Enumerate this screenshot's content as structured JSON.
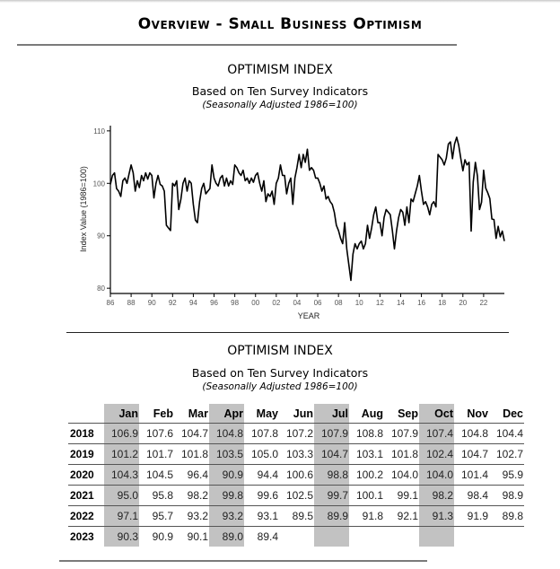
{
  "page": {
    "title": "Overview - Small Business Optimism"
  },
  "chart_section": {
    "title": "OPTIMISM INDEX",
    "subtitle": "Based on Ten Survey Indicators",
    "note": "(Seasonally Adjusted 1986=100)"
  },
  "table_section": {
    "title": "OPTIMISM INDEX",
    "subtitle": "Based on Ten Survey Indicators",
    "note": "(Seasonally Adjusted 1986=100)",
    "columns": [
      "Jan",
      "Feb",
      "Mar",
      "Apr",
      "May",
      "Jun",
      "Jul",
      "Aug",
      "Sep",
      "Oct",
      "Nov",
      "Dec"
    ],
    "shaded_columns": [
      "Jan",
      "Apr",
      "Jul",
      "Oct"
    ],
    "shade_color": "#c2c2c2",
    "rows": [
      {
        "year": "2018",
        "values": [
          "106.9",
          "107.6",
          "104.7",
          "104.8",
          "107.8",
          "107.2",
          "107.9",
          "108.8",
          "107.9",
          "107.4",
          "104.8",
          "104.4"
        ]
      },
      {
        "year": "2019",
        "values": [
          "101.2",
          "101.7",
          "101.8",
          "103.5",
          "105.0",
          "103.3",
          "104.7",
          "103.1",
          "101.8",
          "102.4",
          "104.7",
          "102.7"
        ]
      },
      {
        "year": "2020",
        "values": [
          "104.3",
          "104.5",
          "96.4",
          "90.9",
          "94.4",
          "100.6",
          "98.8",
          "100.2",
          "104.0",
          "104.0",
          "101.4",
          "95.9"
        ]
      },
      {
        "year": "2021",
        "values": [
          "95.0",
          "95.8",
          "98.2",
          "99.8",
          "99.6",
          "102.5",
          "99.7",
          "100.1",
          "99.1",
          "98.2",
          "98.4",
          "98.9"
        ]
      },
      {
        "year": "2022",
        "values": [
          "97.1",
          "95.7",
          "93.2",
          "93.2",
          "93.1",
          "89.5",
          "89.9",
          "91.8",
          "92.1",
          "91.3",
          "91.9",
          "89.8"
        ]
      },
      {
        "year": "2023",
        "values": [
          "90.3",
          "90.9",
          "90.1",
          "89.0",
          "89.4",
          "",
          "",
          "",
          "",
          "",
          "",
          ""
        ]
      }
    ]
  },
  "chart_data": {
    "type": "line",
    "title": "OPTIMISM INDEX",
    "subtitle": "Based on Ten Survey Indicators (Seasonally Adjusted 1986=100)",
    "xlabel": "YEAR",
    "ylabel": "Index Value (1986=100)",
    "xlim": [
      1986,
      2023.4
    ],
    "ylim": [
      79,
      111
    ],
    "yticks": [
      80,
      90,
      100,
      110
    ],
    "xtick_labels": [
      "86",
      "88",
      "90",
      "92",
      "94",
      "96",
      "98",
      "00",
      "02",
      "04",
      "06",
      "08",
      "10",
      "12",
      "14",
      "16",
      "18",
      "20",
      "22"
    ],
    "xtick_values": [
      1986,
      1988,
      1990,
      1992,
      1994,
      1996,
      1998,
      2000,
      2002,
      2004,
      2006,
      2008,
      2010,
      2012,
      2014,
      2016,
      2018,
      2020,
      2022
    ],
    "grid": false,
    "legend": "none",
    "series": [
      {
        "name": "Optimism Index",
        "color": "#000000",
        "points": [
          [
            1986.0,
            99.8
          ],
          [
            1986.2,
            101.5
          ],
          [
            1986.4,
            102.0
          ],
          [
            1986.6,
            99.0
          ],
          [
            1986.8,
            98.5
          ],
          [
            1987.0,
            97.5
          ],
          [
            1987.2,
            100.5
          ],
          [
            1987.4,
            101.0
          ],
          [
            1987.6,
            100.0
          ],
          [
            1987.8,
            101.8
          ],
          [
            1988.0,
            103.5
          ],
          [
            1988.2,
            102.0
          ],
          [
            1988.4,
            98.5
          ],
          [
            1988.6,
            100.5
          ],
          [
            1988.8,
            99.2
          ],
          [
            1989.0,
            101.5
          ],
          [
            1989.2,
            100.5
          ],
          [
            1989.4,
            102.0
          ],
          [
            1989.6,
            100.8
          ],
          [
            1989.8,
            102.0
          ],
          [
            1990.0,
            101.5
          ],
          [
            1990.2,
            97.2
          ],
          [
            1990.4,
            100.0
          ],
          [
            1990.6,
            101.5
          ],
          [
            1990.8,
            99.8
          ],
          [
            1991.0,
            99.5
          ],
          [
            1991.2,
            98.5
          ],
          [
            1991.4,
            92.0
          ],
          [
            1991.6,
            91.5
          ],
          [
            1991.8,
            91.0
          ],
          [
            1992.0,
            100.0
          ],
          [
            1992.2,
            99.5
          ],
          [
            1992.4,
            100.5
          ],
          [
            1992.6,
            95.0
          ],
          [
            1992.8,
            97.0
          ],
          [
            1993.0,
            100.0
          ],
          [
            1993.2,
            101.0
          ],
          [
            1993.4,
            98.5
          ],
          [
            1993.6,
            100.5
          ],
          [
            1993.8,
            100.0
          ],
          [
            1994.0,
            96.0
          ],
          [
            1994.2,
            93.0
          ],
          [
            1994.4,
            92.5
          ],
          [
            1994.6,
            96.5
          ],
          [
            1994.8,
            99.0
          ],
          [
            1995.0,
            100.0
          ],
          [
            1995.2,
            98.0
          ],
          [
            1995.4,
            98.5
          ],
          [
            1995.6,
            99.0
          ],
          [
            1995.8,
            103.5
          ],
          [
            1996.0,
            101.0
          ],
          [
            1996.2,
            100.0
          ],
          [
            1996.4,
            99.5
          ],
          [
            1996.6,
            101.0
          ],
          [
            1996.8,
            101.5
          ],
          [
            1997.0,
            99.5
          ],
          [
            1997.2,
            101.0
          ],
          [
            1997.4,
            99.5
          ],
          [
            1997.6,
            100.5
          ],
          [
            1997.8,
            99.8
          ],
          [
            1998.0,
            103.5
          ],
          [
            1998.2,
            103.0
          ],
          [
            1998.4,
            102.0
          ],
          [
            1998.6,
            101.5
          ],
          [
            1998.8,
            102.5
          ],
          [
            1999.0,
            100.5
          ],
          [
            1999.2,
            101.0
          ],
          [
            1999.4,
            100.0
          ],
          [
            1999.6,
            101.0
          ],
          [
            1999.8,
            100.2
          ],
          [
            2000.0,
            101.5
          ],
          [
            2000.2,
            102.0
          ],
          [
            2000.4,
            100.0
          ],
          [
            2000.6,
            98.5
          ],
          [
            2000.8,
            100.5
          ],
          [
            2001.0,
            96.5
          ],
          [
            2001.2,
            98.0
          ],
          [
            2001.4,
            97.5
          ],
          [
            2001.6,
            98.5
          ],
          [
            2001.8,
            96.0
          ],
          [
            2002.0,
            100.0
          ],
          [
            2002.2,
            101.0
          ],
          [
            2002.4,
            103.5
          ],
          [
            2002.6,
            101.5
          ],
          [
            2002.8,
            101.5
          ],
          [
            2003.0,
            98.0
          ],
          [
            2003.2,
            100.0
          ],
          [
            2003.4,
            101.0
          ],
          [
            2003.6,
            96.0
          ],
          [
            2003.8,
            101.0
          ],
          [
            2004.0,
            103.0
          ],
          [
            2004.2,
            105.5
          ],
          [
            2004.4,
            103.0
          ],
          [
            2004.6,
            105.5
          ],
          [
            2004.8,
            104.0
          ],
          [
            2005.0,
            106.5
          ],
          [
            2005.2,
            102.5
          ],
          [
            2005.4,
            103.0
          ],
          [
            2005.6,
            102.5
          ],
          [
            2005.8,
            101.0
          ],
          [
            2006.0,
            101.0
          ],
          [
            2006.2,
            100.0
          ],
          [
            2006.4,
            98.5
          ],
          [
            2006.6,
            99.5
          ],
          [
            2006.8,
            97.0
          ],
          [
            2007.0,
            97.5
          ],
          [
            2007.2,
            96.5
          ],
          [
            2007.4,
            96.0
          ],
          [
            2007.6,
            94.5
          ],
          [
            2007.8,
            92.0
          ],
          [
            2008.0,
            91.0
          ],
          [
            2008.2,
            89.5
          ],
          [
            2008.4,
            88.5
          ],
          [
            2008.6,
            92.5
          ],
          [
            2008.8,
            87.5
          ],
          [
            2009.0,
            84.5
          ],
          [
            2009.2,
            81.5
          ],
          [
            2009.4,
            86.5
          ],
          [
            2009.6,
            88.5
          ],
          [
            2009.8,
            87.5
          ],
          [
            2010.0,
            88.5
          ],
          [
            2010.2,
            89.0
          ],
          [
            2010.4,
            87.5
          ],
          [
            2010.6,
            88.5
          ],
          [
            2010.8,
            92.0
          ],
          [
            2011.0,
            89.5
          ],
          [
            2011.2,
            91.5
          ],
          [
            2011.4,
            94.0
          ],
          [
            2011.6,
            95.5
          ],
          [
            2011.8,
            92.5
          ],
          [
            2012.0,
            92.5
          ],
          [
            2012.2,
            90.0
          ],
          [
            2012.4,
            93.5
          ],
          [
            2012.6,
            95.0
          ],
          [
            2012.8,
            94.5
          ],
          [
            2013.0,
            94.0
          ],
          [
            2013.2,
            91.0
          ],
          [
            2013.4,
            87.5
          ],
          [
            2013.6,
            91.0
          ],
          [
            2013.8,
            93.5
          ],
          [
            2014.0,
            95.0
          ],
          [
            2014.2,
            94.5
          ],
          [
            2014.4,
            92.0
          ],
          [
            2014.6,
            95.5
          ],
          [
            2014.8,
            92.5
          ],
          [
            2015.0,
            97.0
          ],
          [
            2015.2,
            96.5
          ],
          [
            2015.4,
            98.0
          ],
          [
            2015.6,
            99.5
          ],
          [
            2015.8,
            101.5
          ],
          [
            2016.0,
            98.5
          ],
          [
            2016.2,
            96.0
          ],
          [
            2016.4,
            96.5
          ],
          [
            2016.6,
            95.5
          ],
          [
            2016.8,
            94.0
          ],
          [
            2017.0,
            96.0
          ],
          [
            2017.2,
            96.5
          ],
          [
            2017.4,
            95.5
          ],
          [
            2017.6,
            105.5
          ],
          [
            2017.8,
            105.0
          ],
          [
            2018.0,
            104.5
          ],
          [
            2018.2,
            103.5
          ],
          [
            2018.4,
            104.8
          ],
          [
            2018.6,
            107.5
          ],
          [
            2018.8,
            107.9
          ],
          [
            2019.0,
            104.7
          ],
          [
            2019.2,
            107.5
          ],
          [
            2019.4,
            108.8
          ],
          [
            2019.6,
            107.2
          ],
          [
            2019.8,
            104.7
          ],
          [
            2020.0,
            102.4
          ],
          [
            2020.2,
            104.5
          ],
          [
            2020.4,
            103.5
          ],
          [
            2020.6,
            104.0
          ],
          [
            2020.8,
            90.9
          ],
          [
            2021.0,
            100.2
          ],
          [
            2021.2,
            104.0
          ],
          [
            2021.4,
            101.4
          ],
          [
            2021.6,
            95.0
          ],
          [
            2021.8,
            96.4
          ],
          [
            2022.0,
            102.5
          ],
          [
            2022.2,
            99.1
          ],
          [
            2022.4,
            98.2
          ],
          [
            2022.6,
            97.1
          ],
          [
            2022.8,
            93.2
          ],
          [
            2023.0,
            93.1
          ],
          [
            2023.2,
            89.5
          ],
          [
            2023.4,
            91.8
          ],
          [
            2023.6,
            89.8
          ],
          [
            2023.8,
            90.9
          ],
          [
            2024.0,
            89.0
          ]
        ]
      }
    ]
  }
}
